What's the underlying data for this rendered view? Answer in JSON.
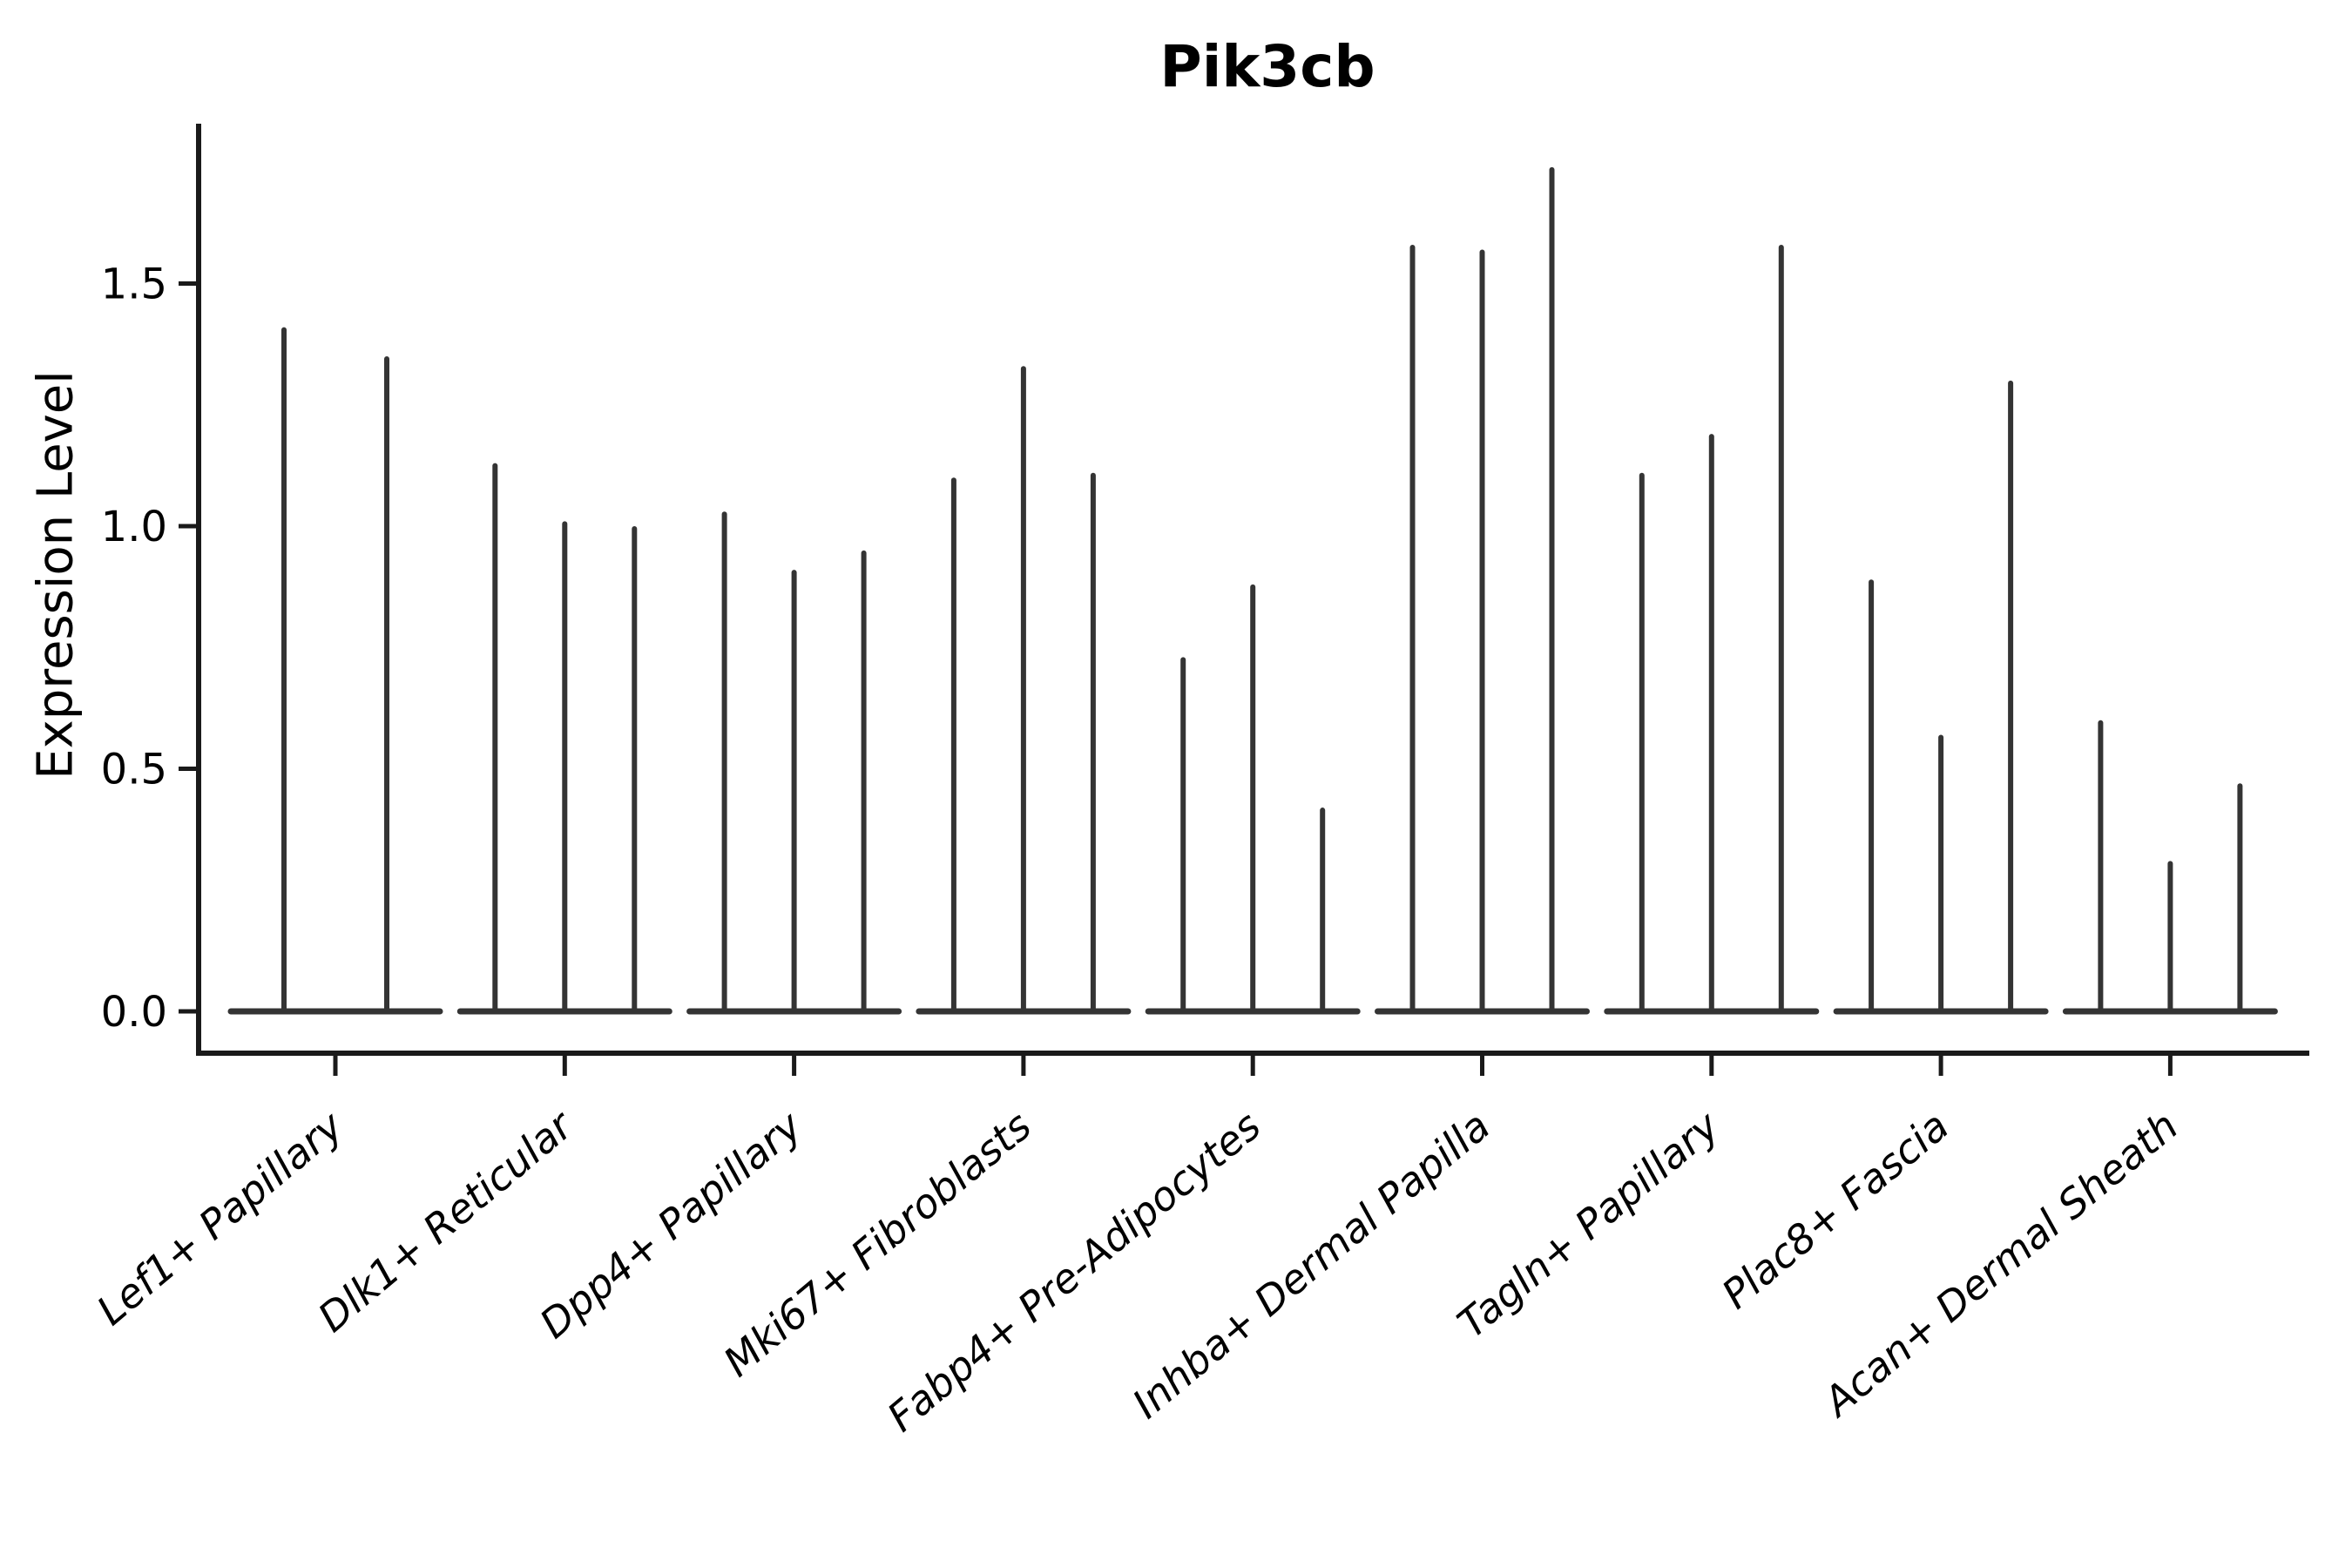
{
  "figure": {
    "background": "#ffffff",
    "title": "Pik3cb",
    "ylabel": "Expression Level"
  },
  "chart_data": {
    "type": "violin",
    "variant": "stick-violin-expression",
    "title": "Pik3cb",
    "xlabel": "",
    "ylabel": "Expression Level",
    "categories": [
      "Lef1+ Papillary",
      "Dlk1+ Reticular",
      "Dpp4+ Papillary",
      "Mki67+ Fibroblasts",
      "Fabp4+ Pre-Adipocytes",
      "Inhba+ Dermal Papilla",
      "Tagln+ Papillary",
      "Plac8+ Fascia",
      "Acan+ Dermal Sheath"
    ],
    "series": [
      {
        "category": "Lef1+ Papillary",
        "spike_max_values": [
          1.41,
          1.35
        ]
      },
      {
        "category": "Dlk1+ Reticular",
        "spike_max_values": [
          1.13,
          1.01,
          1.0
        ]
      },
      {
        "category": "Dpp4+ Papillary",
        "spike_max_values": [
          1.03,
          0.91,
          0.95
        ]
      },
      {
        "category": "Mki67+ Fibroblasts",
        "spike_max_values": [
          1.1,
          1.33,
          1.11
        ]
      },
      {
        "category": "Fabp4+ Pre-Adipocytes",
        "spike_max_values": [
          0.73,
          0.88,
          0.42
        ]
      },
      {
        "category": "Inhba+ Dermal Papilla",
        "spike_max_values": [
          1.58,
          1.57,
          1.74
        ]
      },
      {
        "category": "Tagln+ Papillary",
        "spike_max_values": [
          1.11,
          1.19,
          1.58
        ]
      },
      {
        "category": "Plac8+ Fascia",
        "spike_max_values": [
          0.89,
          0.57,
          1.3
        ]
      },
      {
        "category": "Acan+ Dermal Sheath",
        "spike_max_values": [
          0.6,
          0.31,
          0.47
        ]
      }
    ],
    "ytick_labels": [
      "0.0",
      "0.5",
      "1.0",
      "1.5"
    ],
    "ytick_values": [
      0.0,
      0.5,
      1.0,
      1.5
    ],
    "ylim": [
      -0.086,
      1.83
    ],
    "grid": false,
    "legend": null,
    "xticklabel_rotation_deg": 40,
    "colors": {
      "violin": "#343434",
      "axis": "#1a1a1a",
      "text": "#000000",
      "background": "#ffffff"
    }
  }
}
